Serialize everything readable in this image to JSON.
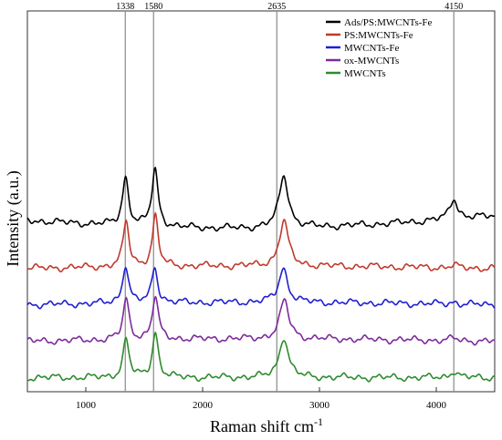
{
  "chart_data": {
    "type": "line",
    "title": "",
    "xlabel": "Raman shift cm",
    "xlabel_superscript": "-1",
    "ylabel": "Intensity (a.u.)",
    "xlim": [
      500,
      4500
    ],
    "x_ticks": [
      1000,
      2000,
      3000,
      4000
    ],
    "y_ticks_shown": false,
    "grid": false,
    "legend_position": "top-right",
    "reference_lines": [
      {
        "x": 1338,
        "label": "1338"
      },
      {
        "x": 1580,
        "label": "1580"
      },
      {
        "x": 2635,
        "label": "2635"
      },
      {
        "x": 4150,
        "label": "4150"
      }
    ],
    "series": [
      {
        "name": "Ads/PS:MWCNTs-Fe",
        "color": "#000000",
        "offset": 3.6,
        "peak_heights": [
          1.05,
          1.25,
          1.15,
          0.45
        ],
        "peak_positions": [
          1340,
          1592,
          2695,
          4150
        ],
        "peak_widths": [
          32,
          32,
          48,
          40
        ],
        "baseline_start": 0.0,
        "baseline_mid": -0.22,
        "baseline_end": 0.1
      },
      {
        "name": "PS:MWCNTs-Fe",
        "color": "#c0392b",
        "offset": 2.55,
        "peak_heights": [
          1.0,
          1.1,
          1.0,
          0.05
        ],
        "peak_positions": [
          1345,
          1595,
          2695,
          4150
        ],
        "peak_widths": [
          30,
          30,
          46,
          35
        ],
        "baseline_start": 0.0,
        "baseline_mid": 0.05,
        "baseline_end": 0.0
      },
      {
        "name": "MWCNTs-Fe",
        "color": "#1f1fd0",
        "offset": 1.75,
        "peak_heights": [
          0.85,
          0.8,
          0.75,
          0.05
        ],
        "peak_positions": [
          1340,
          1590,
          2690,
          4150
        ],
        "peak_widths": [
          30,
          30,
          46,
          35
        ],
        "baseline_start": 0.0,
        "baseline_mid": 0.05,
        "baseline_end": 0.0
      },
      {
        "name": "ox-MWCNTs",
        "color": "#7d2a9c",
        "offset": 0.95,
        "peak_heights": [
          0.9,
          0.95,
          0.85,
          0.05
        ],
        "peak_positions": [
          1345,
          1595,
          2700,
          4150
        ],
        "peak_widths": [
          30,
          30,
          46,
          35
        ],
        "baseline_start": 0.0,
        "baseline_mid": 0.05,
        "baseline_end": 0.0
      },
      {
        "name": "MWCNTs",
        "color": "#2e8b2e",
        "offset": 0.15,
        "peak_heights": [
          0.85,
          1.0,
          0.9,
          0.15
        ],
        "peak_positions": [
          1345,
          1595,
          2695,
          4150
        ],
        "peak_widths": [
          30,
          30,
          46,
          35
        ],
        "baseline_start": 0.0,
        "baseline_mid": 0.0,
        "baseline_end": 0.0
      }
    ]
  }
}
